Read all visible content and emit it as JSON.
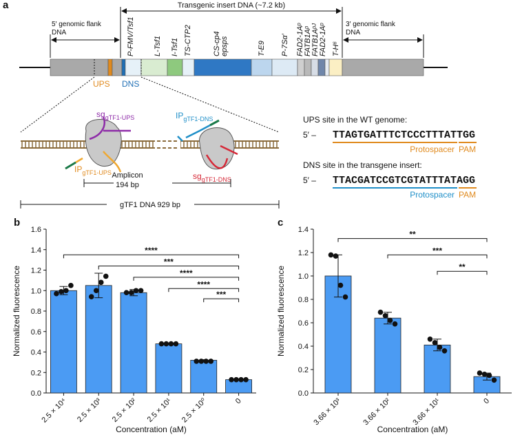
{
  "panel_a": {
    "label": "a",
    "insert_label": "Transgenic insert DNA (~7.2 kb)",
    "flank5": [
      "5′ genomic flank",
      "DNA"
    ],
    "flank3": [
      "3′ genomic flank",
      "DNA"
    ],
    "elements": [
      "P-FMV/Tsf1",
      "L-Tsf1",
      "I-Tsf1",
      "TS-CTP2",
      "CS-cp4",
      "epsps",
      "T-E9",
      "P-7Sα′",
      "FAD2-1Aᵖ",
      "FATB1Aᵖ",
      "FATB1Aᵖᴶ",
      "FAD2-1Aᵖ",
      "T-H⁶"
    ],
    "ups": "UPS",
    "dns": "DNS",
    "sg_ups": {
      "base": "sg",
      "sub": "gTF1-UPS"
    },
    "ip_ups": {
      "base": "IP",
      "sub": "gTF1-UPS"
    },
    "ip_dns": {
      "base": "IP",
      "sub": "gTF1-DNS"
    },
    "sg_dns": {
      "base": "sg",
      "sub": "gTF1-DNS"
    },
    "amplicon": [
      "Amplicon",
      "194 bp"
    ],
    "gtf1": "gTF1 DNA 929 bp",
    "ups_site": {
      "title": "UPS site in the WT genome:",
      "prefix": "5′ –",
      "sequence": "TTAGTGATTTCTCCCTTTATTGG",
      "protospacer": "Protospacer",
      "pam": "PAM"
    },
    "dns_site": {
      "title": "DNS site in the transgene insert:",
      "prefix": "5′ –",
      "sequence": "TTACGATCCGTCGTATTTATAGG",
      "protospacer": "Protospacer",
      "pam": "PAM"
    }
  },
  "chart_data": [
    {
      "type": "bar",
      "panel_label": "b",
      "ylabel": "Normalized fluorescence",
      "xlabel": "Concentration (aM)",
      "color": "#4b9bf3",
      "categories": [
        "2.5 × 10⁴",
        "2.5 × 10³",
        "2.5 × 10²",
        "2.5 × 10¹",
        "2.5 × 10⁰",
        "0"
      ],
      "values": [
        1.0,
        1.05,
        0.98,
        0.48,
        0.32,
        0.13
      ],
      "errors": [
        0.04,
        0.12,
        0.03,
        0.005,
        0.005,
        0.005
      ],
      "points": [
        [
          0.97,
          0.99,
          1.0,
          1.05
        ],
        [
          0.94,
          1.0,
          1.08,
          1.14
        ],
        [
          0.98,
          0.98,
          1.0,
          1.0
        ],
        [
          0.48,
          0.48,
          0.48,
          0.48
        ],
        [
          0.31,
          0.31,
          0.31,
          0.31
        ],
        [
          0.13,
          0.13,
          0.13,
          0.13
        ]
      ],
      "ylim": [
        0,
        1.6
      ],
      "yticks": [
        {
          "value": 0,
          "label": "0.0"
        },
        0.2,
        0.4,
        0.6,
        0.8,
        {
          "value": 1,
          "label": "1.0"
        },
        1.2,
        1.4,
        1.6
      ],
      "brackets": [
        {
          "from": 0,
          "to": 5,
          "y": 1.35,
          "label": "****"
        },
        {
          "from": 1,
          "to": 5,
          "y": 1.24,
          "label": "***"
        },
        {
          "from": 2,
          "to": 5,
          "y": 1.13,
          "label": "****"
        },
        {
          "from": 3,
          "to": 5,
          "y": 1.02,
          "label": "****"
        },
        {
          "from": 4,
          "to": 5,
          "y": 0.92,
          "label": "***"
        }
      ]
    },
    {
      "type": "bar",
      "panel_label": "c",
      "ylabel": "Normalized fluorescence",
      "xlabel": "Concentration (aM)",
      "color": "#4b9bf3",
      "categories": [
        "3.66 × 10³",
        "3.66 × 10²",
        "3.66 × 10¹",
        "0"
      ],
      "values": [
        1.0,
        0.64,
        0.41,
        0.14
      ],
      "errors": [
        0.18,
        0.05,
        0.05,
        0.03
      ],
      "points": [
        [
          1.18,
          1.17,
          0.92,
          0.82
        ],
        [
          0.69,
          0.66,
          0.62,
          0.59
        ],
        [
          0.46,
          0.43,
          0.39,
          0.36
        ],
        [
          0.17,
          0.16,
          0.15,
          0.11
        ]
      ],
      "ylim": [
        0,
        1.4
      ],
      "yticks": [
        {
          "value": 0,
          "label": "0.0"
        },
        0.2,
        0.4,
        0.6,
        0.8,
        {
          "value": 1,
          "label": "1.0"
        },
        1.2,
        1.4
      ],
      "brackets": [
        {
          "from": 0,
          "to": 3,
          "y": 1.32,
          "label": "**"
        },
        {
          "from": 1,
          "to": 3,
          "y": 1.18,
          "label": "***"
        },
        {
          "from": 2,
          "to": 3,
          "y": 1.04,
          "label": "**"
        }
      ]
    }
  ]
}
